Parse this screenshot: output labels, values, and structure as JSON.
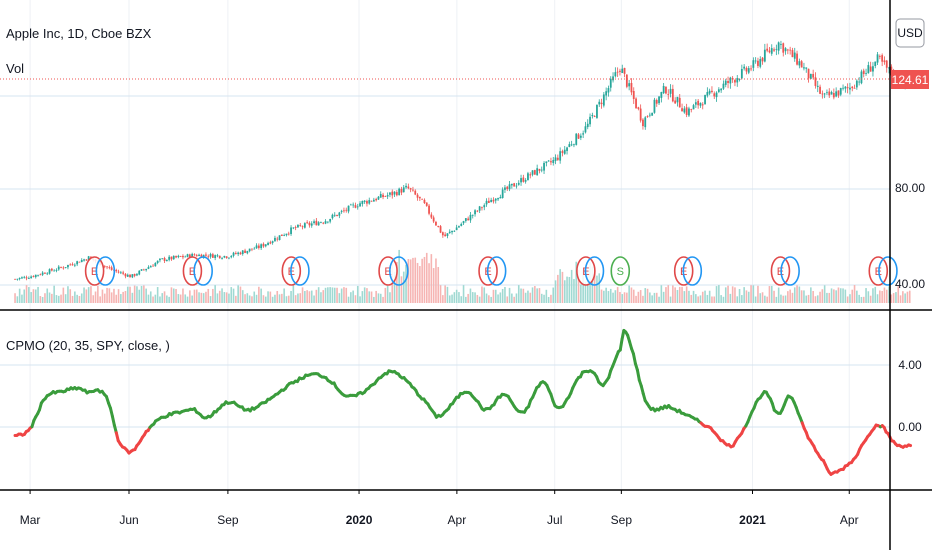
{
  "header": {
    "title": "Apple Inc, 1D, Cboe BZX",
    "volume_label": "Vol",
    "currency_button": "USD"
  },
  "indicator": {
    "label": "CPMO (20, 35, SPY, close, )"
  },
  "last_price": {
    "value": "124.61",
    "color": "#ef5350"
  },
  "colors": {
    "up": "#26a69a",
    "down": "#ef5350",
    "osc_up": "#3a9c3c",
    "osc_down": "#ef4444",
    "grid": "#d6e4f0",
    "earnings": "#e04848",
    "dividend": "#2196f3",
    "split": "#4caf50"
  },
  "chart_data": [
    {
      "type": "candlestick",
      "series_name": "Apple Inc, 1D, Cboe BZX",
      "y_ticks": [
        "40.00",
        "80.00",
        "124.61"
      ],
      "ylim": [
        38,
        138
      ],
      "x_ticks": [
        {
          "label": "Mar",
          "bold": false
        },
        {
          "label": "Jun",
          "bold": false
        },
        {
          "label": "Sep",
          "bold": false
        },
        {
          "label": "2020",
          "bold": true
        },
        {
          "label": "Apr",
          "bold": false
        },
        {
          "label": "Jul",
          "bold": false
        },
        {
          "label": "Sep",
          "bold": false
        },
        {
          "label": "2021",
          "bold": true
        },
        {
          "label": "Apr",
          "bold": false
        }
      ],
      "price_path": [
        [
          "2019-02-15",
          42.5
        ],
        [
          "2019-03-01",
          43.5
        ],
        [
          "2019-04-01",
          47.5
        ],
        [
          "2019-04-25",
          51.5
        ],
        [
          "2019-05-15",
          46.5
        ],
        [
          "2019-06-03",
          43.5
        ],
        [
          "2019-07-01",
          50.5
        ],
        [
          "2019-08-01",
          52.5
        ],
        [
          "2019-09-01",
          52.0
        ],
        [
          "2019-10-01",
          56.0
        ],
        [
          "2019-11-01",
          63.5
        ],
        [
          "2019-12-01",
          67.0
        ],
        [
          "2020-01-01",
          74.0
        ],
        [
          "2020-02-01",
          78.0
        ],
        [
          "2020-02-15",
          80.5
        ],
        [
          "2020-03-01",
          74.0
        ],
        [
          "2020-03-20",
          60.0
        ],
        [
          "2020-04-01",
          64.0
        ],
        [
          "2020-05-01",
          75.0
        ],
        [
          "2020-06-01",
          84.0
        ],
        [
          "2020-07-01",
          92.0
        ],
        [
          "2020-07-31",
          106.0
        ],
        [
          "2020-08-31",
          131.0
        ],
        [
          "2020-09-21",
          108.0
        ],
        [
          "2020-10-12",
          122.0
        ],
        [
          "2020-11-01",
          112.0
        ],
        [
          "2020-12-01",
          122.0
        ],
        [
          "2021-01-01",
          131.0
        ],
        [
          "2021-01-25",
          141.0
        ],
        [
          "2021-02-15",
          132.0
        ],
        [
          "2021-03-08",
          118.0
        ],
        [
          "2021-04-01",
          122.0
        ],
        [
          "2021-04-28",
          134.0
        ],
        [
          "2021-05-14",
          126.0
        ],
        [
          "2021-05-28",
          124.61
        ]
      ],
      "events": [
        {
          "date": "2019-04-30",
          "kind": "E"
        },
        {
          "date": "2019-05-10",
          "kind": "D"
        },
        {
          "date": "2019-07-30",
          "kind": "E"
        },
        {
          "date": "2019-08-09",
          "kind": "D"
        },
        {
          "date": "2019-10-30",
          "kind": "E"
        },
        {
          "date": "2019-11-07",
          "kind": "D"
        },
        {
          "date": "2020-01-28",
          "kind": "E"
        },
        {
          "date": "2020-02-07",
          "kind": "D"
        },
        {
          "date": "2020-04-30",
          "kind": "E"
        },
        {
          "date": "2020-05-08",
          "kind": "D"
        },
        {
          "date": "2020-07-30",
          "kind": "E"
        },
        {
          "date": "2020-08-07",
          "kind": "D"
        },
        {
          "date": "2020-08-31",
          "kind": "S"
        },
        {
          "date": "2020-10-29",
          "kind": "E"
        },
        {
          "date": "2020-11-06",
          "kind": "D"
        },
        {
          "date": "2021-01-27",
          "kind": "E"
        },
        {
          "date": "2021-02-05",
          "kind": "D"
        },
        {
          "date": "2021-04-28",
          "kind": "E"
        },
        {
          "date": "2021-05-07",
          "kind": "D"
        }
      ]
    },
    {
      "type": "line",
      "series_name": "CPMO (20, 35, SPY, close, )",
      "y_ticks": [
        "4.00",
        "0.00"
      ],
      "ylim": [
        -4.3,
        6.8
      ],
      "values": [
        [
          "2019-02-15",
          -0.6
        ],
        [
          "2019-03-01",
          -0.1
        ],
        [
          "2019-03-15",
          1.9
        ],
        [
          "2019-04-01",
          2.3
        ],
        [
          "2019-04-15",
          2.5
        ],
        [
          "2019-04-25",
          2.2
        ],
        [
          "2019-05-03",
          2.4
        ],
        [
          "2019-05-13",
          1.6
        ],
        [
          "2019-05-22",
          -0.8
        ],
        [
          "2019-06-03",
          -1.6
        ],
        [
          "2019-06-17",
          -0.3
        ],
        [
          "2019-07-01",
          0.6
        ],
        [
          "2019-07-22",
          1.0
        ],
        [
          "2019-08-01",
          1.1
        ],
        [
          "2019-08-12",
          0.6
        ],
        [
          "2019-09-01",
          1.6
        ],
        [
          "2019-09-20",
          1.1
        ],
        [
          "2019-10-10",
          1.8
        ],
        [
          "2019-10-30",
          2.8
        ],
        [
          "2019-11-20",
          3.4
        ],
        [
          "2019-12-05",
          3.0
        ],
        [
          "2019-12-20",
          2.0
        ],
        [
          "2020-01-06",
          2.3
        ],
        [
          "2020-01-27",
          3.5
        ],
        [
          "2020-02-10",
          3.2
        ],
        [
          "2020-03-05",
          1.5
        ],
        [
          "2020-03-15",
          0.7
        ],
        [
          "2020-04-10",
          2.3
        ],
        [
          "2020-04-28",
          1.1
        ],
        [
          "2020-05-15",
          2.1
        ],
        [
          "2020-06-01",
          0.9
        ],
        [
          "2020-06-20",
          2.9
        ],
        [
          "2020-07-05",
          1.2
        ],
        [
          "2020-07-25",
          3.3
        ],
        [
          "2020-08-05",
          3.6
        ],
        [
          "2020-08-15",
          2.7
        ],
        [
          "2020-08-31",
          5.0
        ],
        [
          "2020-09-05",
          6.1
        ],
        [
          "2020-09-25",
          1.5
        ],
        [
          "2020-10-15",
          1.3
        ],
        [
          "2020-10-25",
          1.0
        ],
        [
          "2020-11-05",
          0.6
        ],
        [
          "2020-11-25",
          -0.2
        ],
        [
          "2020-12-10",
          -1.2
        ],
        [
          "2020-12-20",
          -0.5
        ],
        [
          "2021-01-12",
          2.2
        ],
        [
          "2021-01-25",
          0.8
        ],
        [
          "2021-02-05",
          2.0
        ],
        [
          "2021-02-20",
          -0.4
        ],
        [
          "2021-03-08",
          -2.2
        ],
        [
          "2021-03-15",
          -3.0
        ],
        [
          "2021-04-05",
          -2.1
        ],
        [
          "2021-04-20",
          -0.4
        ],
        [
          "2021-04-30",
          0.1
        ],
        [
          "2021-05-14",
          -1.1
        ],
        [
          "2021-05-28",
          -1.2
        ]
      ]
    }
  ]
}
